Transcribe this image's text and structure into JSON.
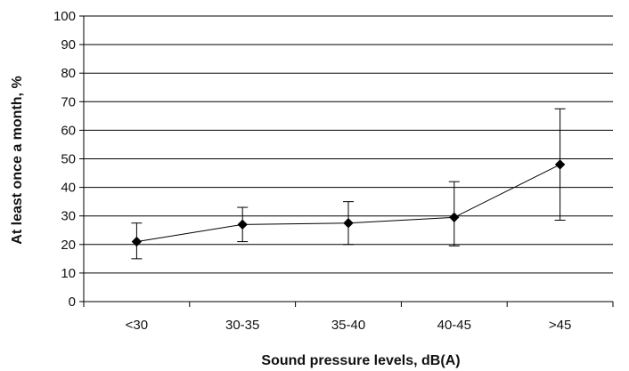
{
  "chart_data": {
    "type": "line",
    "categories": [
      "<30",
      "30-35",
      "35-40",
      "40-45",
      ">45"
    ],
    "series": [
      {
        "values": [
          21,
          27,
          27.5,
          29.5,
          48
        ],
        "error_low": [
          15,
          21,
          20,
          19.5,
          28.5
        ],
        "error_high": [
          27.5,
          33,
          35,
          42,
          67.5
        ]
      }
    ],
    "xlabel": "Sound pressure levels, dB(A)",
    "ylabel": "At least once a month, %",
    "ylim": [
      0,
      100
    ],
    "yticks": [
      0,
      10,
      20,
      30,
      40,
      50,
      60,
      70,
      80,
      90,
      100
    ],
    "grid": "horizontal",
    "marker": "diamond",
    "colors": {
      "line": "#000000",
      "grid": "#000000"
    }
  }
}
